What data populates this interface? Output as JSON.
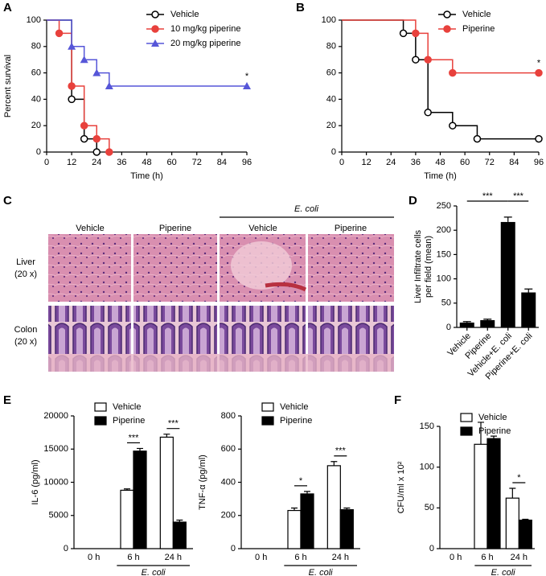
{
  "panel_labels": [
    "A",
    "B",
    "C",
    "D",
    "E",
    "F"
  ],
  "histology": {
    "columns": [
      "Vehicle",
      "Piperine",
      "Vehicle",
      "Piperine"
    ],
    "group_label": "E. coli",
    "rows": [
      [
        "Liver",
        "(20 x)"
      ],
      [
        "Colon",
        "(20 x)"
      ]
    ]
  },
  "chart_data": [
    {
      "type": "line",
      "step": true,
      "xlabel": "Time (h)",
      "ylabel": "Percent survival",
      "xlim": [
        0,
        96
      ],
      "xticks": [
        0,
        12,
        24,
        36,
        48,
        60,
        72,
        84,
        96
      ],
      "ylim": [
        0,
        100
      ],
      "yticks": [
        0,
        20,
        40,
        60,
        80,
        100
      ],
      "legend": "upper right",
      "annotation": "*",
      "series": [
        {
          "name": "Vehicle",
          "color": "#000000",
          "marker": "open-circle",
          "x": [
            0,
            12,
            18,
            24
          ],
          "values": [
            100,
            40,
            10,
            0
          ]
        },
        {
          "name": "10 mg/kg piperine",
          "color": "#e8413c",
          "marker": "circle",
          "x": [
            0,
            6,
            12,
            18,
            24,
            30
          ],
          "values": [
            100,
            90,
            50,
            20,
            10,
            0
          ]
        },
        {
          "name": "20 mg/kg piperine",
          "color": "#5656d8",
          "marker": "triangle",
          "x": [
            0,
            12,
            18,
            24,
            30,
            96
          ],
          "values": [
            100,
            80,
            70,
            60,
            50,
            50
          ]
        }
      ]
    },
    {
      "type": "line",
      "step": true,
      "xlabel": "Time (h)",
      "xlim": [
        0,
        96
      ],
      "xticks": [
        0,
        12,
        24,
        36,
        48,
        60,
        72,
        84,
        96
      ],
      "ylim": [
        0,
        100
      ],
      "yticks": [
        0,
        20,
        40,
        60,
        80,
        100
      ],
      "legend": "upper right",
      "annotation": "*",
      "series": [
        {
          "name": "Vehicle",
          "color": "#000000",
          "marker": "open-circle",
          "x": [
            0,
            30,
            36,
            42,
            54,
            66,
            96
          ],
          "values": [
            100,
            90,
            70,
            30,
            20,
            10,
            10
          ]
        },
        {
          "name": "Piperine",
          "color": "#e8413c",
          "marker": "circle",
          "x": [
            0,
            36,
            42,
            54,
            96
          ],
          "values": [
            100,
            90,
            70,
            60,
            60
          ]
        }
      ]
    },
    {
      "type": "bar",
      "ylabel": [
        "Liver Infiltrate cells",
        "per field (mean)"
      ],
      "categories": [
        "Vehicle",
        "Piperine",
        "Vehicle+E. coli",
        "Piperine+E. coli"
      ],
      "values": [
        10,
        15,
        217,
        72
      ],
      "errors": [
        2,
        2,
        10,
        7
      ],
      "color": "#000000",
      "ylim": [
        0,
        250
      ],
      "yticks": [
        0,
        50,
        100,
        150,
        200,
        250
      ],
      "significance": [
        "***",
        "***"
      ]
    },
    {
      "type": "grouped-bar",
      "ylabel": "IL-6 (pg/ml)",
      "categories": [
        "0 h",
        "6 h",
        "24 h"
      ],
      "group_label": "E. coli",
      "ylim": [
        0,
        20000
      ],
      "yticks": [
        0,
        5000,
        10000,
        15000,
        20000
      ],
      "legend": "upper left",
      "series": [
        {
          "name": "Vehicle",
          "color": "#ffffff",
          "values": [
            null,
            8800,
            16800
          ],
          "errors": [
            null,
            200,
            450
          ]
        },
        {
          "name": "Piperine",
          "color": "#000000",
          "values": [
            null,
            14700,
            4000
          ],
          "errors": [
            null,
            400,
            300
          ]
        }
      ],
      "significance": [
        null,
        "***",
        "***"
      ]
    },
    {
      "type": "grouped-bar",
      "ylabel": "TNF-α (pg/ml)",
      "categories": [
        "0 h",
        "6 h",
        "24 h"
      ],
      "group_label": "E. coli",
      "ylim": [
        0,
        800
      ],
      "yticks": [
        0,
        200,
        400,
        600,
        800
      ],
      "legend": "upper left",
      "series": [
        {
          "name": "Vehicle",
          "color": "#ffffff",
          "values": [
            null,
            230,
            500
          ],
          "errors": [
            null,
            15,
            25
          ]
        },
        {
          "name": "Piperine",
          "color": "#000000",
          "values": [
            null,
            330,
            235
          ],
          "errors": [
            null,
            15,
            10
          ]
        }
      ],
      "significance": [
        null,
        "*",
        "***"
      ]
    },
    {
      "type": "grouped-bar",
      "ylabel": "CFU/ml x 10²",
      "categories": [
        "0 h",
        "6 h",
        "24 h"
      ],
      "group_label": "E. coli",
      "ylim": [
        0,
        150
      ],
      "yticks": [
        0,
        50,
        100,
        150
      ],
      "legend": "upper left",
      "series": [
        {
          "name": "Vehicle",
          "color": "#ffffff",
          "values": [
            null,
            128,
            62
          ],
          "errors": [
            null,
            27,
            12
          ]
        },
        {
          "name": "Piperine",
          "color": "#000000",
          "values": [
            null,
            135,
            35
          ],
          "errors": [
            null,
            3,
            1
          ]
        }
      ],
      "significance": [
        null,
        null,
        "*"
      ]
    }
  ]
}
